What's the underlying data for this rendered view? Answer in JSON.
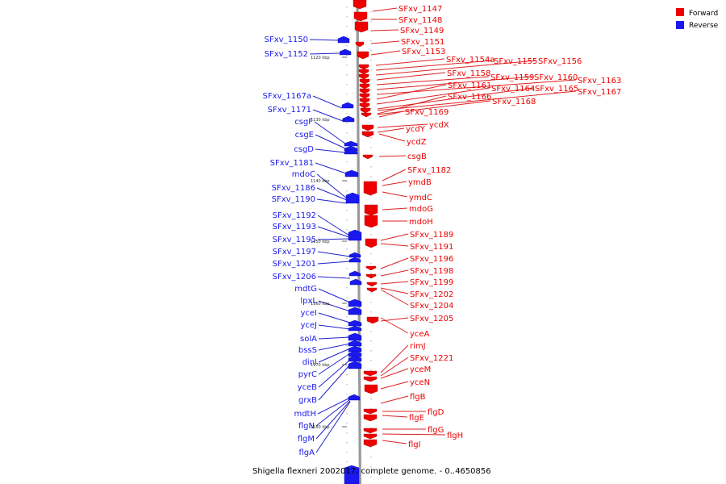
{
  "title": "Shigella flexneri 2002017, complete genome. - 0..4650856",
  "colors": {
    "forward": "#ee0000",
    "reverse": "#1a1aee",
    "forward_line": "#dd2222",
    "reverse_line": "#2222cc",
    "backbone": "#999999",
    "tick": "#666666"
  },
  "legend": [
    {
      "label": "Forward",
      "strand": "forward"
    },
    {
      "label": "Reverse",
      "strand": "reverse"
    }
  ],
  "scale_ticks": [
    {
      "label": "1120 kbp"
    },
    {
      "label": "1130 kbp"
    },
    {
      "label": "1140 kbp"
    },
    {
      "label": "1150 kbp"
    },
    {
      "label": "1160 kbp"
    },
    {
      "label": "1170 kbp"
    },
    {
      "label": "1180 kbp"
    }
  ],
  "forward_genes": [
    "SFxv_1147",
    "SFxv_1148",
    "SFxv_1149",
    "SFxv_1151",
    "SFxv_1153",
    "SFxv_1154a",
    "SFxv_1155",
    "SFxv_1156",
    "SFxv_1158",
    "SFxv_1159",
    "SFxv_1160",
    "SFxv_1163",
    "SFxv_1161",
    "SFxv_1164",
    "SFxv_1165",
    "SFxv_1167",
    "SFxv_1166",
    "SFxv_1168",
    "SFxv_1169",
    "ycdX",
    "ycdY",
    "ycdZ",
    "csgB",
    "SFxv_1182",
    "ymdB",
    "ymdC",
    "mdoG",
    "mdoH",
    "SFxv_1189",
    "SFxv_1191",
    "SFxv_1196",
    "SFxv_1198",
    "SFxv_1199",
    "SFxv_1202",
    "SFxv_1204",
    "SFxv_1205",
    "yceA",
    "rimJ",
    "SFxv_1221",
    "yceM",
    "yceN",
    "flgB",
    "flgD",
    "flgE",
    "flgG",
    "flgH",
    "flgI"
  ],
  "reverse_genes": [
    "SFxv_1150",
    "SFxv_1152",
    "SFxv_1167a",
    "SFxv_1171",
    "csgF",
    "csgE",
    "csgD",
    "SFxv_1181",
    "mdoC",
    "SFxv_1186",
    "SFxv_1190",
    "SFxv_1192",
    "SFxv_1193",
    "SFxv_1195",
    "SFxv_1197",
    "SFxv_1201",
    "SFxv_1206",
    "mdtG",
    "lpxL",
    "yceI",
    "yceJ",
    "solA",
    "bssS",
    "dinI",
    "pyrC",
    "yceB",
    "grxB",
    "mdtH",
    "flgN",
    "flgM",
    "flgA"
  ]
}
